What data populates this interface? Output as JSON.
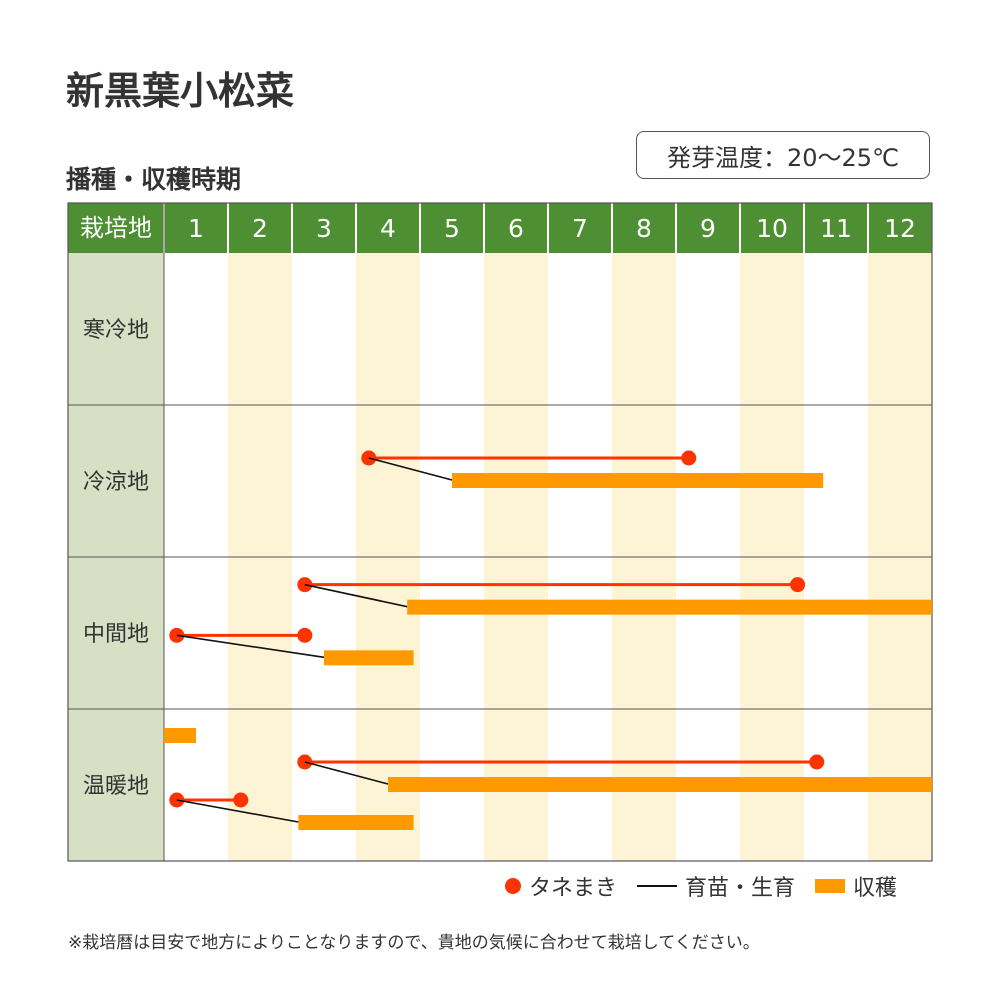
{
  "title": "新黒葉小松菜",
  "subtitle": "播種・収穫時期",
  "germination_temp": "発芽温度：20～25℃",
  "legend": {
    "sowing": "タネまき",
    "seedling": "育苗・生育",
    "harvest": "収穫"
  },
  "footnote": "※栽培暦は目安で地方によりことなりますので、貴地の気候に合わせて栽培してください。",
  "colors": {
    "header": "#4f8f34",
    "region": "#d7dfc4",
    "stripe": "#fdf4d6",
    "sowing": "#ff3300",
    "harvest": "#ff9900",
    "connector": "#111111"
  },
  "chart_data": {
    "type": "gantt",
    "header_label": "栽培地",
    "months": [
      "1",
      "2",
      "3",
      "4",
      "5",
      "6",
      "7",
      "8",
      "9",
      "10",
      "11",
      "12"
    ],
    "regions": [
      {
        "name": "寒冷地",
        "schedules": []
      },
      {
        "name": "冷涼地",
        "schedules": [
          {
            "sowing": [
              4.2,
              9.2
            ],
            "harvest": [
              5.5,
              11.3
            ]
          }
        ]
      },
      {
        "name": "中間地",
        "schedules": [
          {
            "sowing": [
              3.2,
              10.9
            ],
            "harvest": [
              4.8,
              13.0
            ]
          },
          {
            "sowing": [
              1.2,
              3.2
            ],
            "harvest": [
              3.5,
              4.9
            ]
          }
        ]
      },
      {
        "name": "温暖地",
        "schedules": [
          {
            "harvest": [
              1.0,
              1.5
            ]
          },
          {
            "sowing": [
              3.2,
              11.2
            ],
            "harvest": [
              4.5,
              13.0
            ]
          },
          {
            "sowing": [
              1.2,
              2.2
            ],
            "harvest": [
              3.1,
              4.9
            ]
          }
        ]
      }
    ]
  }
}
